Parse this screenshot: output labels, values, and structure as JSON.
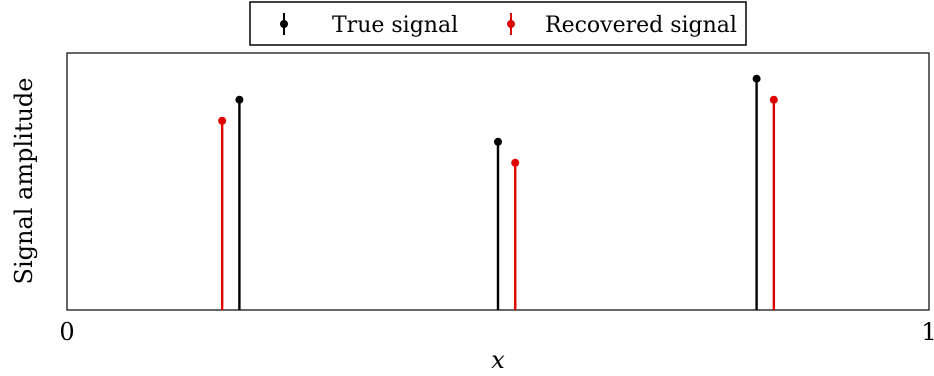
{
  "chart_data": {
    "type": "stem",
    "title": "",
    "xlabel": "x",
    "ylabel": "Signal amplitude",
    "xlim": [
      0,
      1
    ],
    "ylim": [
      0,
      1.1
    ],
    "xticks": [
      "0",
      "1"
    ],
    "grid": false,
    "legend_position": "top-center",
    "series": [
      {
        "name": "True signal",
        "color": "#000000",
        "x": [
          0.2,
          0.5,
          0.8
        ],
        "y": [
          0.9,
          0.72,
          0.99
        ]
      },
      {
        "name": "Recovered signal",
        "color": "#e00000",
        "x": [
          0.18,
          0.52,
          0.82
        ],
        "y": [
          0.81,
          0.63,
          0.9
        ]
      }
    ]
  }
}
